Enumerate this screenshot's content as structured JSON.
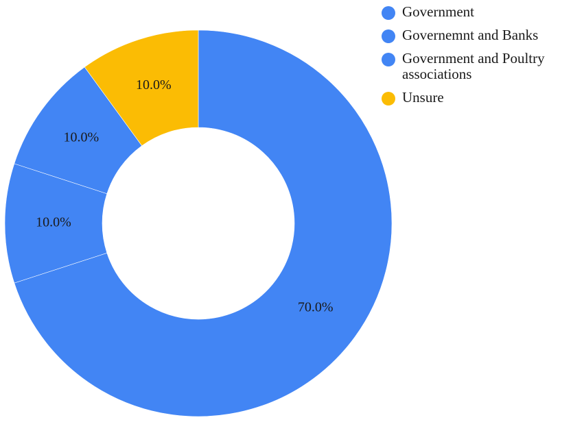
{
  "chart_data": {
    "type": "pie",
    "donut": true,
    "title": "",
    "categories": [
      "Government",
      "Governemnt and Banks",
      "Government and Poultry associations",
      "Unsure"
    ],
    "values": [
      70.0,
      10.0,
      10.0,
      10.0
    ],
    "value_labels": [
      "70.0%",
      "10.0%",
      "10.0%",
      "10.0%"
    ],
    "colors": [
      "#4285f4",
      "#4285f4",
      "#4285f4",
      "#fbbc04"
    ],
    "start_angle_deg": 0,
    "direction": "clockwise",
    "legend_position": "top-right"
  },
  "legend": {
    "items": [
      {
        "label": "Government",
        "color": "#4285f4"
      },
      {
        "label": "Governemnt and Banks",
        "color": "#4285f4"
      },
      {
        "label": "Government and Poultry associations",
        "color": "#4285f4"
      },
      {
        "label": "Unsure",
        "color": "#fbbc04"
      }
    ]
  }
}
